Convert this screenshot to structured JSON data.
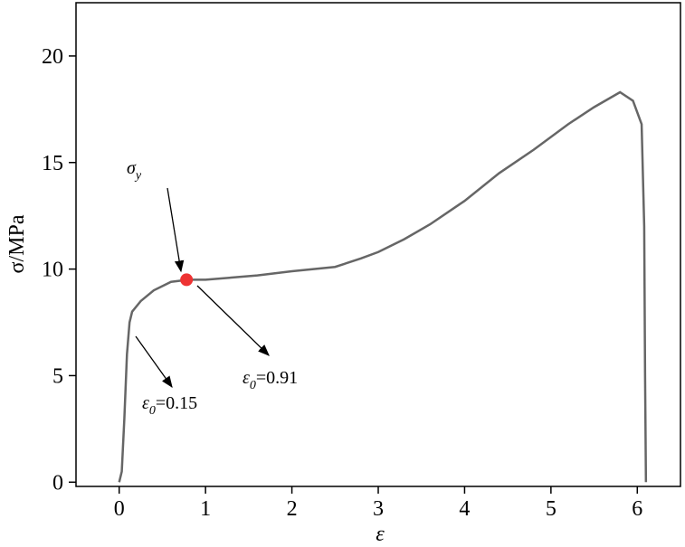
{
  "chart_data": {
    "type": "line",
    "xlabel": "ε",
    "ylabel": "σ/MPa",
    "xlim": [
      -0.5,
      6.5
    ],
    "ylim": [
      -0.2,
      22.5
    ],
    "xticks": [
      0,
      1,
      2,
      3,
      4,
      5,
      6
    ],
    "yticks": [
      0,
      5,
      10,
      15,
      20
    ],
    "series": [
      {
        "color": "#666666",
        "x": [
          0.0,
          0.03,
          0.06,
          0.09,
          0.12,
          0.15,
          0.25,
          0.4,
          0.6,
          0.8,
          1.0,
          1.3,
          1.6,
          2.0,
          2.5,
          2.8,
          3.0,
          3.3,
          3.6,
          4.0,
          4.4,
          4.8,
          5.2,
          5.5,
          5.8,
          5.95,
          6.05,
          6.08,
          6.09,
          6.1
        ],
        "values": [
          0,
          0.5,
          3,
          6,
          7.5,
          8,
          8.5,
          9,
          9.4,
          9.5,
          9.5,
          9.6,
          9.7,
          9.9,
          10.1,
          10.5,
          10.8,
          11.4,
          12.1,
          13.2,
          14.5,
          15.6,
          16.8,
          17.6,
          18.3,
          17.9,
          16.8,
          12,
          5,
          0
        ]
      }
    ],
    "point": {
      "x": 0.78,
      "y": 9.5,
      "color": "#ee3333"
    },
    "annotations": [
      {
        "text": "σ",
        "sub": "y"
      },
      {
        "text": "ε",
        "sub": "0",
        "tail": "=0.15"
      },
      {
        "text": "ε",
        "sub": "0",
        "tail": "=0.91"
      }
    ]
  }
}
